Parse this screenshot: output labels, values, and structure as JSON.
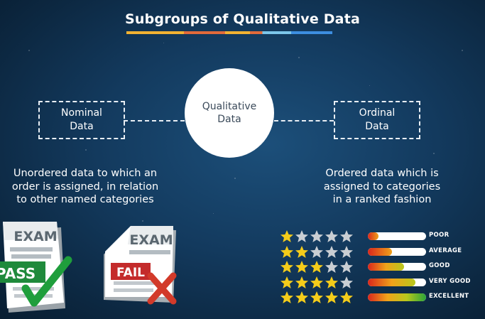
{
  "title": "Subgroups of Qualitative Data",
  "center": {
    "line1": "Qualitative",
    "line2": "Data"
  },
  "nominal": {
    "box_line1": "Nominal",
    "box_line2": "Data",
    "desc": [
      "Unordered data to which an",
      "order is assigned, in relation",
      "to other named categories"
    ]
  },
  "ordinal": {
    "box_line1": "Ordinal",
    "box_line2": "Data",
    "desc": [
      "Ordered data which is",
      "assigned to categories",
      "in a ranked fashion"
    ]
  },
  "exam_cards": [
    {
      "header": "EXAM",
      "result": "PASS",
      "result_color": "#1f8a3b",
      "mark": "check-mark",
      "mark_color": "#1f9e3c"
    },
    {
      "header": "EXAM",
      "result": "FAIL",
      "result_color": "#c42b2b",
      "mark": "x-mark",
      "mark_color": "#d23a2a"
    }
  ],
  "ratings": [
    {
      "label": "POOR",
      "stars": 1,
      "level": 0.18
    },
    {
      "label": "AVERAGE",
      "stars": 2,
      "level": 0.42
    },
    {
      "label": "GOOD",
      "stars": 3,
      "level": 0.62
    },
    {
      "label": "VERY GOOD",
      "stars": 4,
      "level": 0.82
    },
    {
      "label": "EXCELLENT",
      "stars": 5,
      "level": 1.0
    }
  ],
  "colors": {
    "star_on": "#f4cc1a",
    "star_off": "#c9ced3",
    "meter_gradient": [
      "#d9261c",
      "#f0a21a",
      "#b8c81c",
      "#2aa43a"
    ]
  }
}
